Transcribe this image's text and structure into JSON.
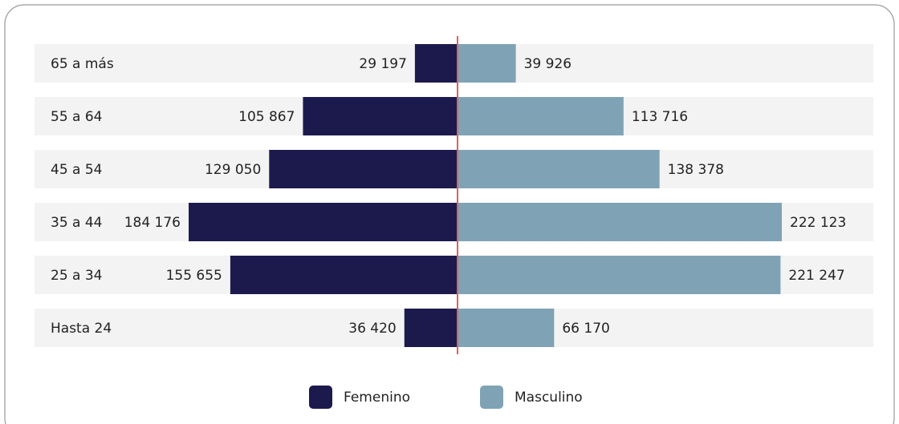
{
  "chart_data": {
    "type": "bar",
    "orientation": "diverging",
    "categories": [
      "65 a más",
      "55 a 64",
      "45 a 54",
      "35 a 44",
      "25 a 34",
      "Hasta 24"
    ],
    "series": [
      {
        "name": "Femenino",
        "color": "#1c1a4d",
        "values": [
          29197,
          105867,
          129050,
          184176,
          155655,
          36420
        ],
        "value_labels": [
          "29 197",
          "105 867",
          "129 050",
          "184 176",
          "155 655",
          "36 420"
        ]
      },
      {
        "name": "Masculino",
        "color": "#7fa3b5",
        "values": [
          39926,
          113716,
          138378,
          222123,
          221247,
          66170
        ],
        "value_labels": [
          "39 926",
          "113 716",
          "138 378",
          "222 123",
          "221 247",
          "66 170"
        ]
      }
    ],
    "center_line_color": "#e0605a",
    "legend": "bottom"
  }
}
